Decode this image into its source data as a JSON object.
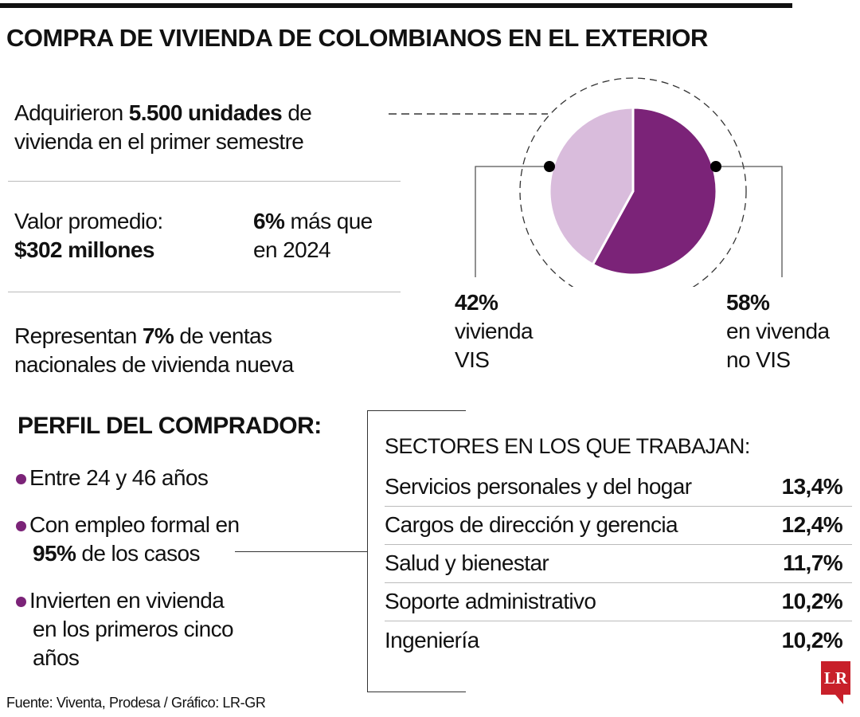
{
  "title": "COMPRA DE VIVIENDA DE COLOMBIANOS EN EL EXTERIOR",
  "stats": {
    "units_pre": "Adquirieron ",
    "units_bold": "5.500 unidades",
    "units_post": " de",
    "units_line2": "vivienda en el primer semestre",
    "avg_label": "Valor promedio:",
    "avg_value": "$302 millones",
    "growth_bold": "6%",
    "growth_post": " más que",
    "growth_line2": "en 2024",
    "share_pre": "Representan ",
    "share_bold": "7%",
    "share_post": " de ventas",
    "share_line2": "nacionales de vivienda nueva"
  },
  "chart_data": {
    "type": "pie",
    "slices": [
      {
        "label_value": "42%",
        "label_line1": "vivienda",
        "label_line2": "VIS",
        "value": 42,
        "color": "#d9bcdc"
      },
      {
        "label_value": "58%",
        "label_line1": "en vivenda",
        "label_line2": "no VIS",
        "value": 58,
        "color": "#7b2378"
      }
    ]
  },
  "profile": {
    "heading": "PERFIL DEL COMPRADOR:",
    "bullet_color": "#7b2378",
    "item1": "Entre 24 y 46 años",
    "item2_line1": "Con empleo formal en",
    "item2_bold": "95%",
    "item2_post": " de los casos",
    "item3_line1": "Invierten en vivienda",
    "item3_line2": "en los primeros cinco",
    "item3_line3": "años"
  },
  "sectors": {
    "heading": "SECTORES EN LOS QUE TRABAJAN:",
    "rows": [
      {
        "name": "Servicios personales y del hogar",
        "value": "13,4%"
      },
      {
        "name": "Cargos de dirección y gerencia",
        "value": "12,4%"
      },
      {
        "name": "Salud y bienestar",
        "value": "11,7%"
      },
      {
        "name": "Soporte administrativo",
        "value": "10,2%"
      },
      {
        "name": "Ingeniería",
        "value": "10,2%"
      }
    ]
  },
  "source": "Fuente: Viventa, Prodesa / Gráfico: LR-GR",
  "logo": "LR"
}
